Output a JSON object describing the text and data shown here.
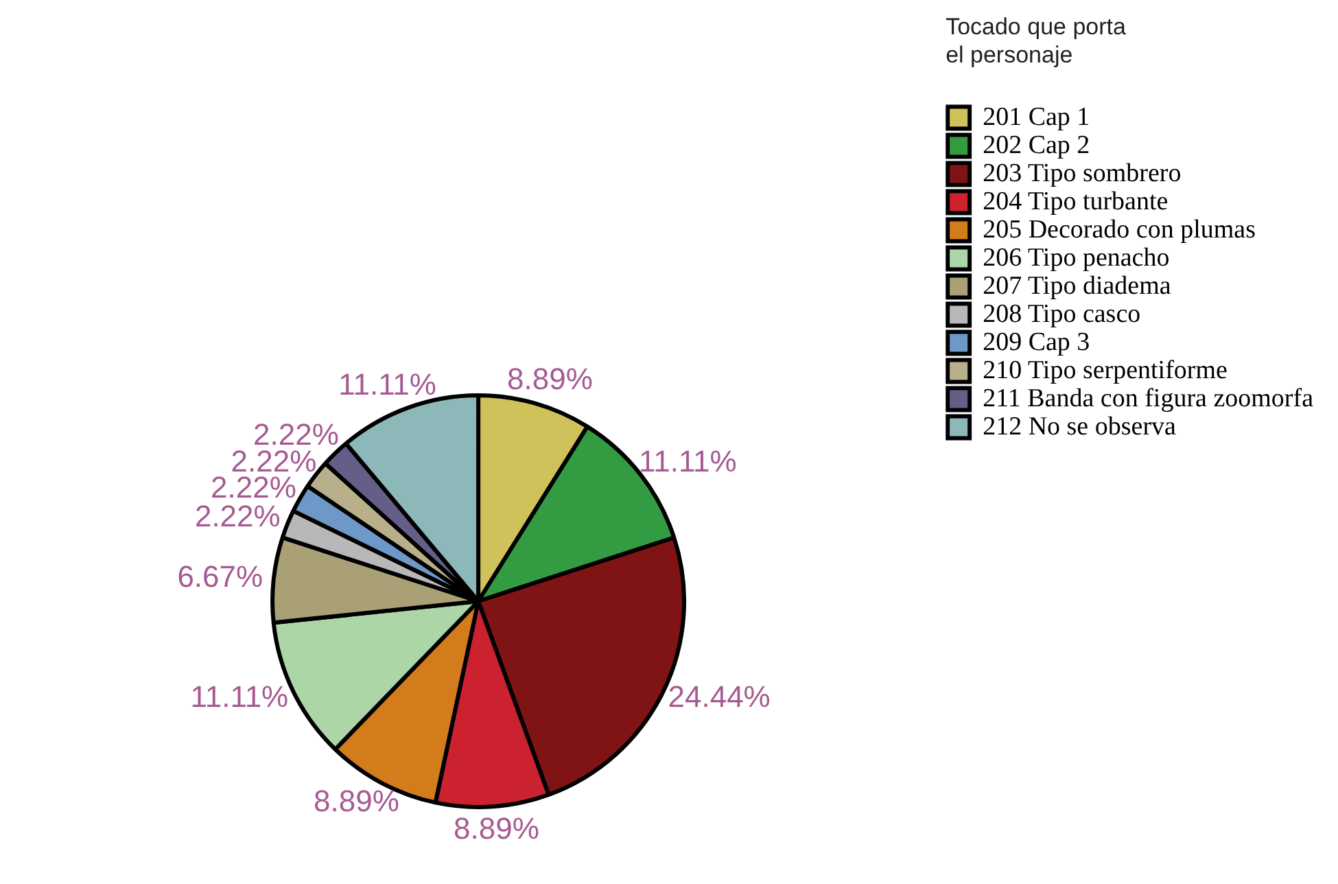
{
  "chart_data": {
    "type": "pie",
    "legend_title": "Tocado que porta el personaje",
    "legend": "top right",
    "categories": [
      "201 Cap 1",
      "202 Cap 2",
      "203 Tipo sombrero",
      "204 Tipo turbante",
      "205 Decorado con plumas",
      "206 Tipo penacho",
      "207 Tipo diadema",
      "208 Tipo casco",
      "209 Cap 3",
      "210 Tipo serpentiforme",
      "211 Banda con figura zoomorfa",
      "212 No se observa"
    ],
    "values": [
      8.89,
      11.11,
      24.44,
      8.89,
      8.89,
      11.11,
      6.67,
      2.22,
      2.22,
      2.22,
      2.22,
      11.11
    ],
    "colors": [
      "#cfc25a",
      "#339c42",
      "#801414",
      "#cc2230",
      "#d27c1c",
      "#acd6a8",
      "#aaa076",
      "#b8b8b8",
      "#6e98c8",
      "#b8b08a",
      "#645e88",
      "#8cb8ba"
    ],
    "value_labels": [
      "8.89%",
      "11.11%",
      "24.44%",
      "8.89%",
      "8.89%",
      "11.11%",
      "6.67%",
      "2.22%",
      "2.22%",
      "2.22%",
      "2.22%",
      "11.11%"
    ]
  }
}
